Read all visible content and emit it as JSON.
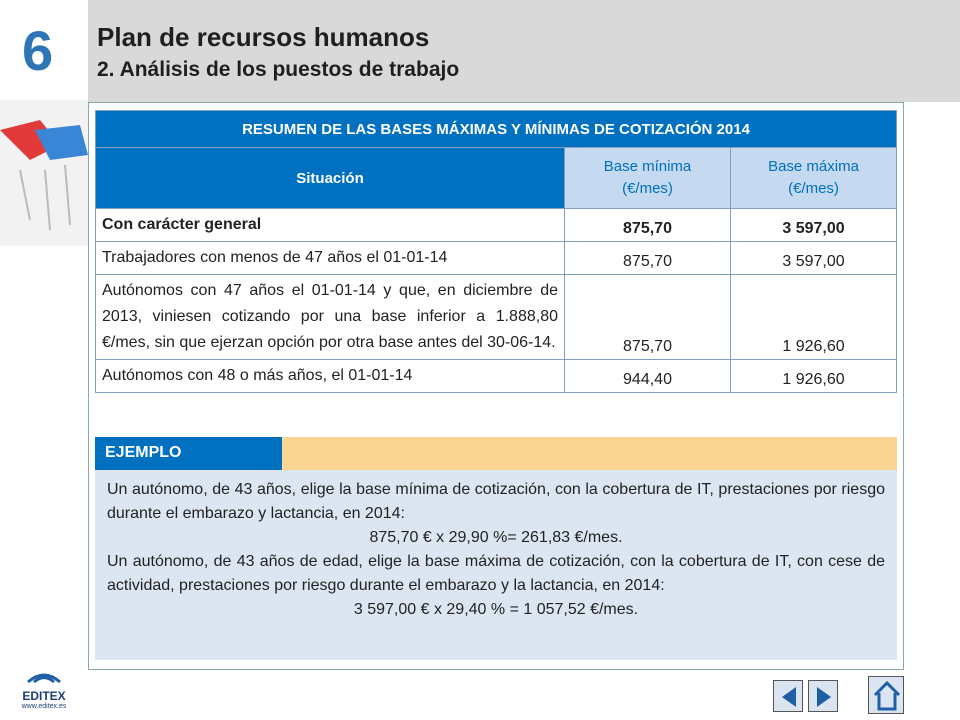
{
  "header": {
    "section_number": "6",
    "title": "Plan de recursos humanos",
    "subtitle": "2. Análisis de los puestos de trabajo"
  },
  "table": {
    "title": "RESUMEN DE LAS BASES MÁXIMAS Y MÍNIMAS DE COTIZACIÓN 2014",
    "columns": [
      {
        "label": "Situación"
      },
      {
        "label": "Base mínima",
        "unit": "(€/mes)"
      },
      {
        "label": "Base máxima",
        "unit": "(€/mes)"
      }
    ],
    "rows": [
      [
        "Con carácter general",
        "875,70",
        "3 597,00"
      ],
      [
        "Trabajadores con menos de 47 años el 01-01-14",
        "875,70",
        "3 597,00"
      ],
      [
        "Autónomos con 47 años el 01-01-14 y que, en diciembre de 2013, viniesen cotizando por una base inferior a 1.888,80 €/mes, sin que ejerzan opción por otra base antes del 30-06-14.",
        "875,70",
        "1 926,60"
      ],
      [
        "Autónomos con 48 o más años, el 01-01-14",
        "944,40",
        "1 926,60"
      ]
    ]
  },
  "example": {
    "label": "EJEMPLO",
    "paragraphs": [
      {
        "text": "Un autónomo, de 43 años, elige la base mínima de cotización, con la cobertura de IT, prestaciones por riesgo durante el embarazo y lactancia, en 2014:",
        "calculation": "875,70 € x 29,90 %= 261,83 €/mes."
      },
      {
        "text": "Un autónomo, de 43 años de edad, elige la base máxima de cotización, con la cobertura de IT, con cese de actividad, prestaciones por riesgo durante el embarazo y la lactancia, en 2014:",
        "calculation": "3 597,00 € x 29,40 % = 1 057,52 €/mes."
      }
    ]
  },
  "footer": {
    "logo": "EDITEX",
    "url": "www.editex.es"
  }
}
